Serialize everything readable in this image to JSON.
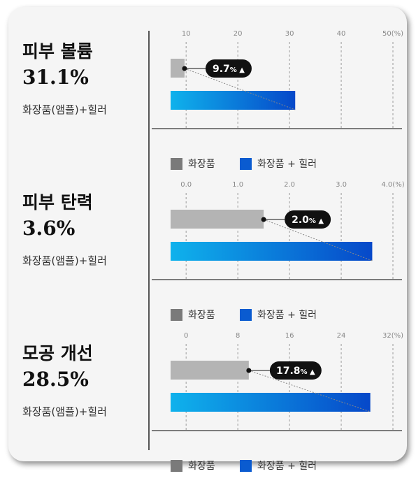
{
  "legend": {
    "items": [
      {
        "label": "화장품",
        "color": "#7a7a7a"
      },
      {
        "label": "화장품 + 힐러",
        "color": "#0a5bd0"
      }
    ]
  },
  "sections": [
    {
      "title": "피부 볼륨",
      "value": "31.1%",
      "subtitle": "화장품(앰플)+힐러",
      "callout_value": "9.7",
      "callout_unit": "%",
      "callout_arrow": "▲"
    },
    {
      "title": "피부 탄력",
      "value": "3.6%",
      "subtitle": "화장품(앰플)+힐러",
      "callout_value": "2.0",
      "callout_unit": "%",
      "callout_arrow": "▲"
    },
    {
      "title": "모공 개선",
      "value": "28.5%",
      "subtitle": "화장품(앰플)+힐러",
      "callout_value": "17.8",
      "callout_unit": "%",
      "callout_arrow": "▲"
    }
  ],
  "chart_data": [
    {
      "type": "bar",
      "orientation": "horizontal",
      "tick_labels": [
        "10",
        "20",
        "30",
        "40",
        "50(%)"
      ],
      "ticks": [
        10,
        20,
        30,
        40,
        50
      ],
      "xlim": [
        7,
        50
      ],
      "series": [
        {
          "name": "화장품",
          "values": [
            9.7
          ]
        },
        {
          "name": "화장품 + 힐러",
          "values": [
            31.1
          ]
        }
      ],
      "annotation": "9.7% ▲",
      "colors": {
        "base": "#b4b4b4",
        "combo_start": "#0fb2ec",
        "combo_end": "#0648c9"
      }
    },
    {
      "type": "bar",
      "orientation": "horizontal",
      "tick_labels": [
        "0.0",
        "1.0",
        "2.0",
        "3.0",
        "4.0(%)"
      ],
      "ticks": [
        0,
        1,
        2,
        3,
        4
      ],
      "xlim": [
        -0.3,
        4
      ],
      "series": [
        {
          "name": "화장품",
          "values": [
            1.5
          ]
        },
        {
          "name": "화장품 + 힐러",
          "values": [
            3.6
          ]
        }
      ],
      "annotation": "2.0% ▲",
      "colors": {
        "base": "#b4b4b4",
        "combo_start": "#0fb2ec",
        "combo_end": "#0648c9"
      }
    },
    {
      "type": "bar",
      "orientation": "horizontal",
      "tick_labels": [
        "0",
        "8",
        "16",
        "24",
        "32(%)"
      ],
      "ticks": [
        0,
        8,
        16,
        24,
        32
      ],
      "xlim": [
        -2.4,
        32
      ],
      "series": [
        {
          "name": "화장품",
          "values": [
            9.7
          ]
        },
        {
          "name": "화장품 + 힐러",
          "values": [
            28.5
          ]
        }
      ],
      "annotation": "17.8% ▲",
      "colors": {
        "base": "#b4b4b4",
        "combo_start": "#0fb2ec",
        "combo_end": "#0648c9"
      }
    }
  ]
}
